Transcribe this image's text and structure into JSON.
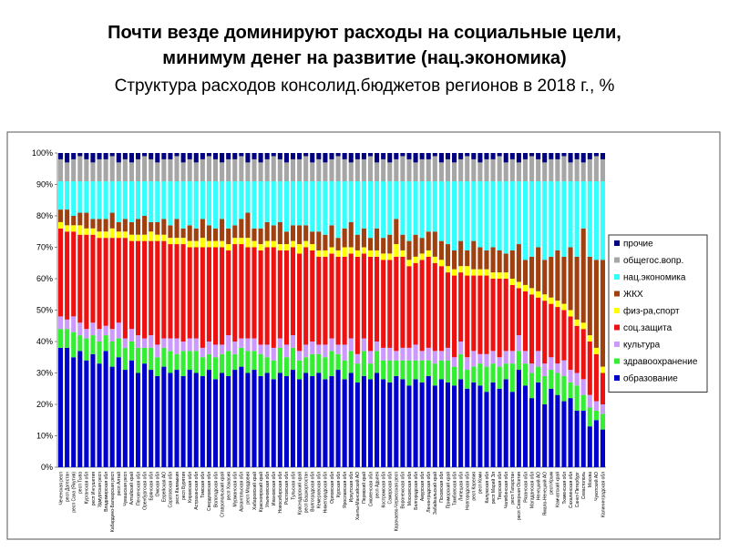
{
  "chart_data": {
    "type": "stacked_bar",
    "title_lines": [
      "Почти везде доминируют расходы на социальные цели,",
      "минимум денег на развитие (нац.экономика)"
    ],
    "subtitle": "Структура расходов консолид.бюджетов регионов в 2018 г., %",
    "categories": [
      "Чеченская респ",
      "респ Дагестан",
      "респ Саха (Якутия)",
      "респ Тыва",
      "Курганская обл",
      "респ Ингушетия",
      "Удмуртская респ",
      "Владимирская обл",
      "Кабардино-Балкарская респ",
      "респ Алтай",
      "Чувашская респ",
      "Алтайский край",
      "Пензенская обл",
      "Оренбургская обл",
      "Брянская обл",
      "Омская обл",
      "Еврейская АО",
      "Саратовская обл",
      "респ Калмыкия",
      "респ Бурятия",
      "Кировская обл",
      "Астраханская обл",
      "Томская обл",
      "Свердловская обл",
      "Вологодская обл",
      "Ставропольский край",
      "респ Хакасия",
      "Мурманская обл",
      "Архангельская обл",
      "респ Мордовия",
      "Хабаровский край",
      "Красноярский край",
      "Ульяновская обл",
      "Ивановская обл",
      "Новосибирская обл",
      "Ростовская обл",
      "Тульская обл",
      "Краснодарский край",
      "респ Башкортостан",
      "Волгоградская обл",
      "Кемеровская обл",
      "Нижегородская обл",
      "Орловская обл",
      "Курская обл",
      "Ярославская обл",
      "Иркутская обл",
      "Ханты-Мансийский АО",
      "Пермский край",
      "Смоленская обл",
      "респ Адыгея",
      "Костромская обл",
      "Самарская обл",
      "Карачаево-Черкесская респ",
      "Воронежская обл",
      "Московская обл",
      "Белгородская обл",
      "Амурская обл",
      "Ленинградская обл",
      "Забайкальский край",
      "Псковская обл",
      "Приморский край",
      "Тамбовская обл",
      "Липецкая обл",
      "Новгородская обл",
      "респ Карелия",
      "респ Коми",
      "Калужская обл",
      "респ Марий Эл",
      "Тверская обл",
      "Челябинская обл",
      "респ Татарстан",
      "респ Северная Осетия",
      "Рязанская обл",
      "Магаданская обл",
      "Ненецкий АО",
      "Ямало-Ненецкий АО",
      "респ Крым",
      "Камчатский край",
      "Тюменская обл",
      "Сахалинская обл",
      "Санкт-Петербург",
      "Севастополь",
      "Москва",
      "Чукотский АО",
      "Калининградская обл"
    ],
    "series": [
      {
        "name": "образование",
        "color": "#0000cc",
        "values": [
          38,
          38,
          35,
          37,
          34,
          36,
          33,
          37,
          32,
          35,
          31,
          34,
          30,
          33,
          31,
          29,
          32,
          30,
          31,
          29,
          31,
          30,
          29,
          31,
          28,
          30,
          29,
          31,
          32,
          30,
          31,
          29,
          30,
          28,
          30,
          29,
          31,
          28,
          30,
          29,
          30,
          28,
          29,
          31,
          28,
          30,
          27,
          29,
          28,
          30,
          28,
          27,
          29,
          28,
          26,
          28,
          27,
          29,
          26,
          28,
          27,
          26,
          28,
          25,
          27,
          26,
          24,
          27,
          25,
          28,
          24,
          31,
          26,
          22,
          27,
          20,
          25,
          23,
          21,
          22,
          18,
          18,
          13,
          15,
          12
        ]
      },
      {
        "name": "здравоохранение",
        "color": "#33ee33",
        "values": [
          6,
          6,
          8,
          5,
          7,
          6,
          7,
          5,
          8,
          6,
          7,
          6,
          8,
          5,
          7,
          6,
          6,
          7,
          5,
          8,
          6,
          7,
          6,
          5,
          7,
          6,
          8,
          5,
          6,
          7,
          6,
          7,
          5,
          6,
          8,
          6,
          7,
          6,
          5,
          7,
          6,
          7,
          8,
          5,
          6,
          7,
          6,
          8,
          5,
          7,
          6,
          7,
          5,
          6,
          8,
          6,
          7,
          5,
          7,
          6,
          7,
          6,
          8,
          6,
          5,
          7,
          8,
          6,
          7,
          5,
          9,
          6,
          7,
          8,
          5,
          9,
          6,
          7,
          8,
          5,
          8,
          5,
          6,
          3,
          5
        ]
      },
      {
        "name": "культура",
        "color": "#cc99ff",
        "values": [
          4,
          3,
          5,
          4,
          3,
          4,
          4,
          3,
          4,
          5,
          3,
          4,
          4,
          3,
          4,
          4,
          3,
          4,
          5,
          3,
          4,
          4,
          3,
          4,
          4,
          3,
          5,
          4,
          3,
          4,
          4,
          3,
          4,
          4,
          3,
          4,
          4,
          3,
          4,
          4,
          3,
          4,
          4,
          3,
          5,
          4,
          3,
          4,
          4,
          3,
          4,
          4,
          3,
          4,
          4,
          5,
          3,
          4,
          4,
          3,
          4,
          3,
          4,
          4,
          5,
          3,
          4,
          4,
          3,
          4,
          4,
          5,
          4,
          3,
          5,
          4,
          4,
          3,
          5,
          4,
          4,
          5,
          4,
          3,
          3
        ]
      },
      {
        "name": "соц.защита",
        "color": "#ee1111",
        "values": [
          28,
          28,
          27,
          28,
          30,
          28,
          29,
          28,
          29,
          27,
          32,
          28,
          30,
          31,
          30,
          33,
          31,
          30,
          30,
          31,
          29,
          29,
          32,
          30,
          31,
          31,
          27,
          31,
          30,
          29,
          29,
          30,
          31,
          32,
          28,
          30,
          28,
          31,
          31,
          29,
          28,
          28,
          27,
          28,
          28,
          27,
          31,
          27,
          30,
          27,
          28,
          28,
          30,
          29,
          26,
          26,
          29,
          29,
          28,
          27,
          24,
          26,
          22,
          26,
          24,
          25,
          25,
          23,
          25,
          23,
          21,
          15,
          19,
          22,
          17,
          20,
          17,
          18,
          16,
          17,
          15,
          16,
          17,
          15,
          10
        ]
      },
      {
        "name": "физ-ра,спорт",
        "color": "#ffff00",
        "values": [
          2,
          2,
          2,
          3,
          2,
          2,
          2,
          2,
          3,
          2,
          2,
          2,
          2,
          2,
          3,
          2,
          2,
          2,
          2,
          2,
          2,
          2,
          3,
          2,
          2,
          2,
          2,
          2,
          2,
          3,
          2,
          2,
          2,
          2,
          2,
          2,
          2,
          3,
          2,
          2,
          2,
          2,
          2,
          2,
          3,
          2,
          2,
          2,
          2,
          2,
          2,
          2,
          4,
          2,
          2,
          2,
          2,
          2,
          2,
          2,
          2,
          2,
          2,
          3,
          2,
          2,
          2,
          2,
          2,
          2,
          2,
          2,
          2,
          2,
          2,
          2,
          2,
          2,
          2,
          2,
          2,
          2,
          2,
          2,
          2
        ]
      },
      {
        "name": "ЖКХ",
        "color": "#a0400f",
        "values": [
          4,
          5,
          3,
          4,
          5,
          3,
          4,
          4,
          5,
          3,
          4,
          4,
          5,
          6,
          3,
          4,
          5,
          4,
          6,
          3,
          5,
          4,
          6,
          5,
          4,
          7,
          5,
          4,
          6,
          8,
          4,
          5,
          6,
          5,
          7,
          4,
          5,
          6,
          5,
          4,
          6,
          5,
          7,
          4,
          6,
          8,
          5,
          6,
          4,
          7,
          5,
          6,
          8,
          5,
          6,
          7,
          5,
          6,
          8,
          6,
          7,
          6,
          8,
          5,
          9,
          7,
          6,
          8,
          7,
          6,
          9,
          12,
          8,
          10,
          14,
          11,
          13,
          16,
          15,
          20,
          20,
          30,
          25,
          28,
          34
        ]
      },
      {
        "name": "нац.экономика",
        "color": "#33ffff",
        "values": [
          9,
          9,
          11,
          10,
          10,
          12,
          12,
          12,
          10,
          13,
          12,
          13,
          12,
          11,
          13,
          13,
          12,
          14,
          12,
          15,
          14,
          15,
          12,
          14,
          15,
          12,
          15,
          14,
          12,
          10,
          15,
          15,
          13,
          14,
          13,
          16,
          14,
          14,
          14,
          16,
          16,
          17,
          14,
          18,
          15,
          13,
          17,
          15,
          18,
          15,
          18,
          17,
          12,
          17,
          19,
          17,
          18,
          16,
          16,
          19,
          20,
          22,
          19,
          22,
          19,
          21,
          22,
          21,
          22,
          23,
          22,
          20,
          25,
          24,
          21,
          25,
          24,
          22,
          24,
          21,
          24,
          15,
          24,
          25,
          25
        ]
      },
      {
        "name": "общегос.вопр.",
        "color": "#a6a6a6",
        "values": [
          7,
          6,
          7,
          8,
          7,
          6,
          7,
          7,
          8,
          6,
          7,
          6,
          7,
          8,
          7,
          6,
          7,
          7,
          8,
          6,
          7,
          6,
          7,
          8,
          7,
          6,
          7,
          7,
          8,
          6,
          7,
          6,
          7,
          8,
          7,
          6,
          7,
          7,
          8,
          6,
          7,
          6,
          7,
          8,
          7,
          6,
          7,
          7,
          8,
          6,
          7,
          6,
          7,
          8,
          7,
          6,
          7,
          7,
          8,
          6,
          7,
          6,
          7,
          8,
          7,
          6,
          7,
          7,
          8,
          6,
          7,
          6,
          7,
          8,
          7,
          6,
          7,
          7,
          8,
          6,
          7,
          6,
          7,
          8,
          7
        ]
      },
      {
        "name": "прочие",
        "color": "#000080",
        "values": [
          2,
          3,
          2,
          1,
          2,
          3,
          2,
          2,
          1,
          3,
          2,
          3,
          2,
          1,
          2,
          3,
          2,
          2,
          1,
          3,
          2,
          3,
          2,
          1,
          2,
          3,
          2,
          2,
          1,
          3,
          2,
          3,
          2,
          1,
          2,
          3,
          2,
          2,
          1,
          3,
          2,
          3,
          2,
          1,
          2,
          3,
          2,
          2,
          1,
          3,
          2,
          3,
          2,
          1,
          2,
          3,
          2,
          2,
          1,
          3,
          2,
          3,
          2,
          1,
          2,
          3,
          2,
          2,
          1,
          3,
          2,
          3,
          2,
          1,
          2,
          3,
          2,
          2,
          1,
          3,
          2,
          3,
          2,
          1,
          2
        ]
      }
    ],
    "ylim": [
      0,
      100
    ],
    "yticks": [
      {
        "value": 0,
        "label": "0%"
      },
      {
        "value": 10,
        "label": "10%"
      },
      {
        "value": 20,
        "label": "20%"
      },
      {
        "value": 30,
        "label": "30%"
      },
      {
        "value": 40,
        "label": "40%"
      },
      {
        "value": 50,
        "label": "50%"
      },
      {
        "value": 60,
        "label": "60%"
      },
      {
        "value": 70,
        "label": "70%"
      },
      {
        "value": 80,
        "label": "80%"
      },
      {
        "value": 90,
        "label": "90%"
      },
      {
        "value": 100,
        "label": "100%"
      }
    ],
    "legend": "right"
  }
}
